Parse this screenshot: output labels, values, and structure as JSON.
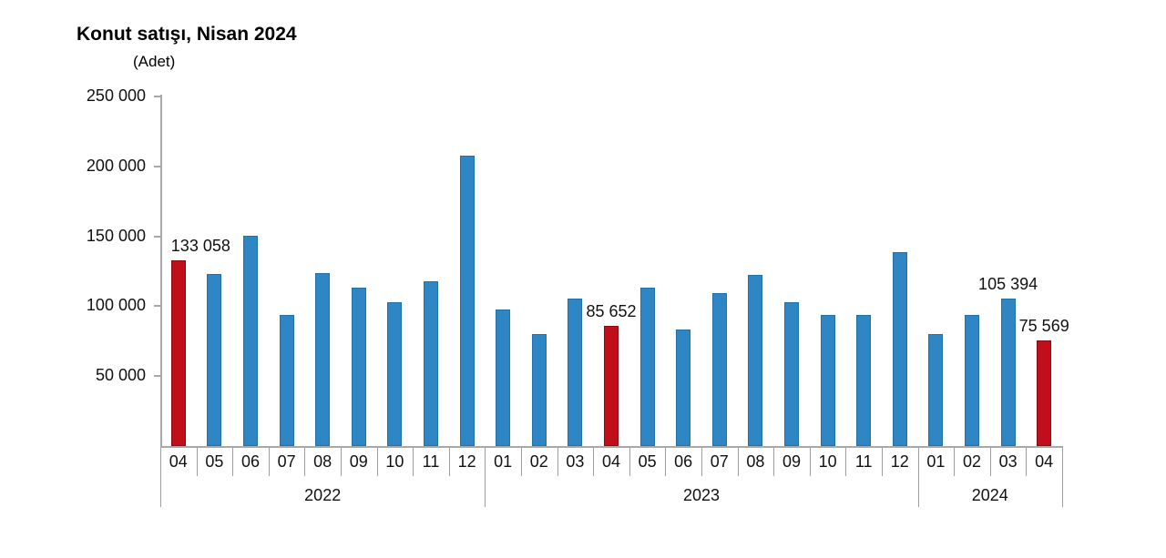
{
  "title": "Konut satışı, Nisan 2024",
  "subtitle": "(Adet)",
  "chart_data": {
    "type": "bar",
    "title": "Konut satışı, Nisan 2024",
    "unit_label": "(Adet)",
    "ylabel": "Adet",
    "xlabel": "",
    "ylim": [
      0,
      250000
    ],
    "y_tick_interval": 50000,
    "y_tick_labels_top_to_bottom": [
      "250 000",
      "200 000",
      "150 000",
      "100 000",
      "50 000"
    ],
    "grid": false,
    "legend": false,
    "colors": {
      "bar_default": "#2E86C4",
      "bar_highlight": "#C00F1A",
      "axis": "#A8A8A8",
      "text": "#111111"
    },
    "years": [
      {
        "label": "2022"
      },
      {
        "label": "2023"
      },
      {
        "label": "2024"
      }
    ],
    "points": [
      {
        "year": "2022",
        "month": "04",
        "value": 133058,
        "highlight": true,
        "label": "133 058"
      },
      {
        "year": "2022",
        "month": "05",
        "value": 122768,
        "highlight": false
      },
      {
        "year": "2022",
        "month": "06",
        "value": 150509,
        "highlight": false
      },
      {
        "year": "2022",
        "month": "07",
        "value": 93902,
        "highlight": false
      },
      {
        "year": "2022",
        "month": "08",
        "value": 123491,
        "highlight": false
      },
      {
        "year": "2022",
        "month": "09",
        "value": 113402,
        "highlight": false
      },
      {
        "year": "2022",
        "month": "10",
        "value": 102660,
        "highlight": false
      },
      {
        "year": "2022",
        "month": "11",
        "value": 117806,
        "highlight": false
      },
      {
        "year": "2022",
        "month": "12",
        "value": 207963,
        "highlight": false
      },
      {
        "year": "2023",
        "month": "01",
        "value": 97708,
        "highlight": false
      },
      {
        "year": "2023",
        "month": "02",
        "value": 80031,
        "highlight": false
      },
      {
        "year": "2023",
        "month": "03",
        "value": 105476,
        "highlight": false
      },
      {
        "year": "2023",
        "month": "04",
        "value": 85652,
        "highlight": true,
        "label": "85 652"
      },
      {
        "year": "2023",
        "month": "05",
        "value": 113179,
        "highlight": false
      },
      {
        "year": "2023",
        "month": "06",
        "value": 83636,
        "highlight": false
      },
      {
        "year": "2023",
        "month": "07",
        "value": 109548,
        "highlight": false
      },
      {
        "year": "2023",
        "month": "08",
        "value": 122091,
        "highlight": false
      },
      {
        "year": "2023",
        "month": "09",
        "value": 102656,
        "highlight": false
      },
      {
        "year": "2023",
        "month": "10",
        "value": 93761,
        "highlight": false
      },
      {
        "year": "2023",
        "month": "11",
        "value": 93514,
        "highlight": false
      },
      {
        "year": "2023",
        "month": "12",
        "value": 138577,
        "highlight": false
      },
      {
        "year": "2024",
        "month": "01",
        "value": 80308,
        "highlight": false
      },
      {
        "year": "2024",
        "month": "02",
        "value": 93902,
        "highlight": false
      },
      {
        "year": "2024",
        "month": "03",
        "value": 105394,
        "highlight": false,
        "label": "105 394"
      },
      {
        "year": "2024",
        "month": "04",
        "value": 75569,
        "highlight": true,
        "label": "75 569"
      }
    ]
  }
}
